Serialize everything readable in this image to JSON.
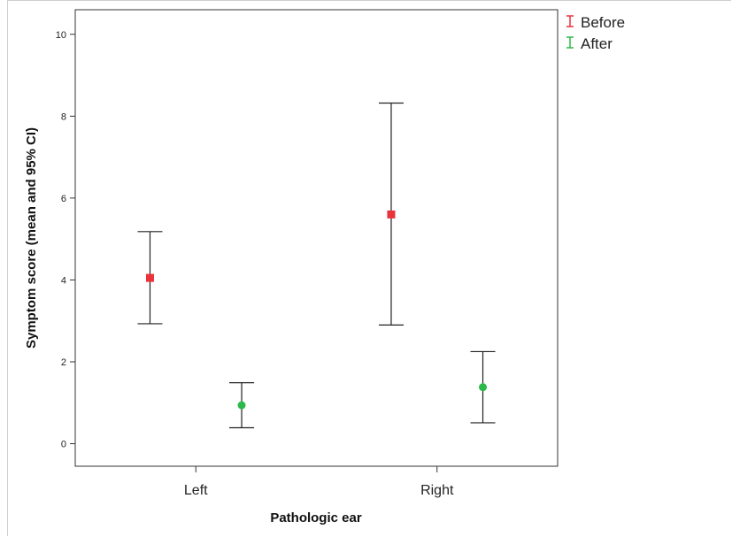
{
  "chart_data": {
    "type": "errorbar",
    "title": "",
    "xlabel": "Pathologic ear",
    "ylabel": "Symptom score (mean and 95% CI)",
    "categories": [
      "Left",
      "Right"
    ],
    "ylim": [
      -0.55,
      10.6
    ],
    "yticks": [
      "0",
      "2",
      "4",
      "6",
      "8",
      "10"
    ],
    "grid": false,
    "legend_position": "top-right outside",
    "series": [
      {
        "name": "Before",
        "color": "#e8333b",
        "marker": "square",
        "points": [
          {
            "category": "Left",
            "mean": 4.05,
            "lower": 2.93,
            "upper": 5.18
          },
          {
            "category": "Right",
            "mean": 5.6,
            "lower": 2.9,
            "upper": 8.32
          }
        ]
      },
      {
        "name": "After",
        "color": "#2db84b",
        "marker": "circle",
        "points": [
          {
            "category": "Left",
            "mean": 0.94,
            "lower": 0.39,
            "upper": 1.49
          },
          {
            "category": "Right",
            "mean": 1.38,
            "lower": 0.51,
            "upper": 2.25
          }
        ]
      }
    ]
  }
}
